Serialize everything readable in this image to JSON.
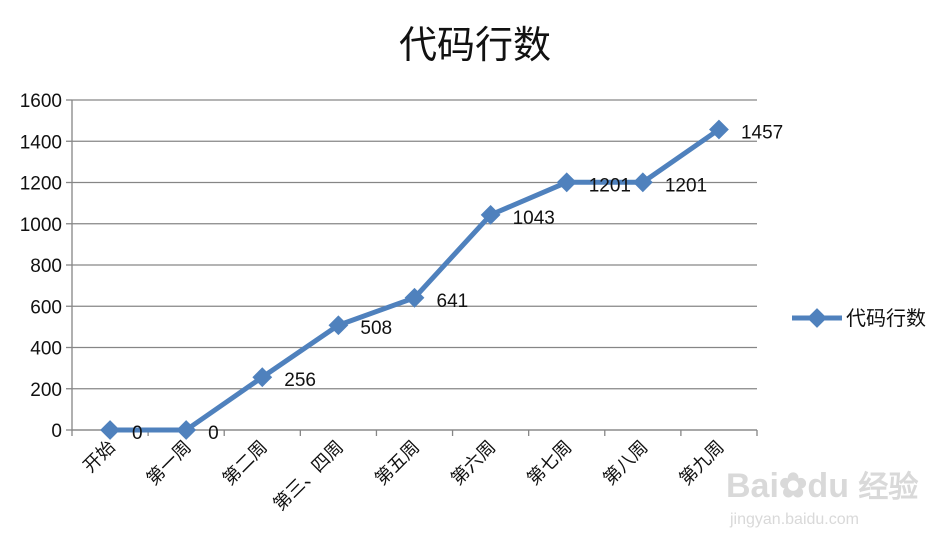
{
  "chart_data": {
    "type": "line",
    "title": "代码行数",
    "categories": [
      "开始",
      "第一周",
      "第二周",
      "第三、四周",
      "第五周",
      "第六周",
      "第七周",
      "第八周",
      "第九周"
    ],
    "series": [
      {
        "name": "代码行数",
        "values": [
          0,
          0,
          256,
          508,
          641,
          1043,
          1201,
          1201,
          1457
        ]
      }
    ],
    "ylim": [
      0,
      1600
    ],
    "yticks": [
      0,
      200,
      400,
      600,
      800,
      1000,
      1200,
      1400,
      1600
    ],
    "grid": true,
    "legend": "right",
    "line_color": "#4f81bd"
  },
  "watermark": {
    "brand": "Bai",
    "brand2": "du",
    "suffix": "经验",
    "url": "jingyan.baidu.com"
  }
}
